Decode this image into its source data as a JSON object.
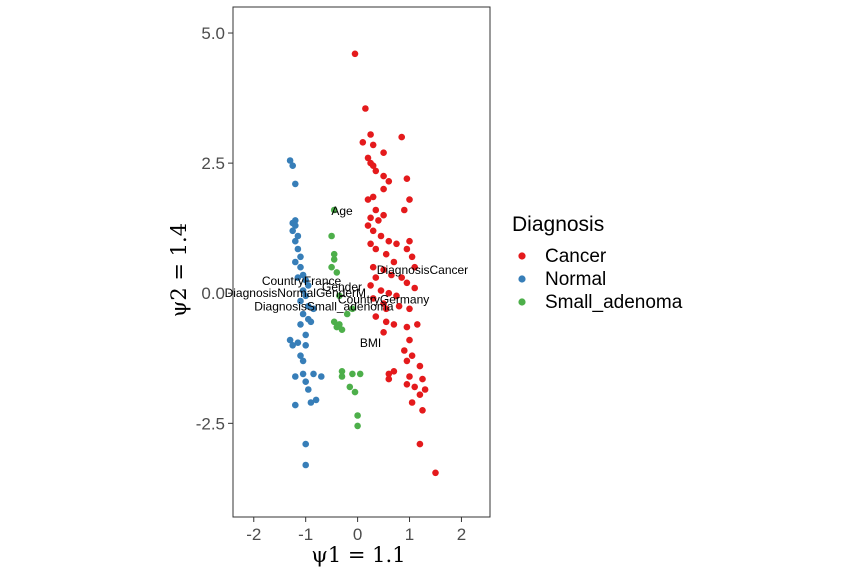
{
  "chart_data": {
    "type": "scatter",
    "xlabel": "ψ1 = 1.1",
    "ylabel": "ψ2 = 1.4",
    "xlim": [
      -2.4,
      2.55
    ],
    "ylim": [
      -4.3,
      5.5
    ],
    "x_ticks": [
      -2,
      -1,
      0,
      1,
      2
    ],
    "x_tick_labels": [
      "-2",
      "-1",
      "0",
      "1",
      "2"
    ],
    "y_ticks": [
      -2.5,
      0,
      2.5,
      5
    ],
    "y_tick_labels": [
      "-2.5",
      "0.0",
      "2.5",
      "5.0"
    ],
    "grid": false,
    "legend": {
      "title": "Diagnosis",
      "position": "right"
    },
    "series": [
      {
        "name": "Cancer",
        "color": "#E41A1C",
        "points": [
          [
            -0.05,
            4.6
          ],
          [
            0.15,
            3.55
          ],
          [
            0.25,
            3.05
          ],
          [
            0.85,
            3.0
          ],
          [
            0.1,
            2.9
          ],
          [
            0.3,
            2.85
          ],
          [
            0.5,
            2.7
          ],
          [
            0.2,
            2.6
          ],
          [
            0.25,
            2.5
          ],
          [
            0.3,
            2.45
          ],
          [
            0.35,
            2.35
          ],
          [
            0.5,
            2.25
          ],
          [
            0.6,
            2.15
          ],
          [
            0.95,
            2.2
          ],
          [
            0.5,
            2.0
          ],
          [
            0.3,
            1.85
          ],
          [
            0.2,
            1.8
          ],
          [
            0.35,
            1.6
          ],
          [
            1.0,
            1.8
          ],
          [
            0.9,
            1.6
          ],
          [
            0.5,
            1.5
          ],
          [
            0.25,
            1.45
          ],
          [
            0.2,
            1.3
          ],
          [
            0.4,
            1.4
          ],
          [
            0.3,
            1.2
          ],
          [
            0.45,
            1.1
          ],
          [
            0.6,
            1.0
          ],
          [
            0.75,
            0.95
          ],
          [
            0.25,
            0.95
          ],
          [
            0.35,
            0.85
          ],
          [
            0.55,
            0.75
          ],
          [
            0.7,
            0.6
          ],
          [
            1.0,
            1.0
          ],
          [
            0.95,
            0.85
          ],
          [
            1.05,
            0.7
          ],
          [
            1.1,
            0.5
          ],
          [
            0.3,
            0.5
          ],
          [
            0.5,
            0.45
          ],
          [
            0.35,
            0.3
          ],
          [
            0.65,
            0.35
          ],
          [
            0.85,
            0.3
          ],
          [
            0.95,
            0.2
          ],
          [
            1.1,
            0.1
          ],
          [
            0.25,
            0.15
          ],
          [
            0.45,
            0.05
          ],
          [
            0.6,
            0.0
          ],
          [
            0.75,
            -0.05
          ],
          [
            0.3,
            -0.1
          ],
          [
            0.5,
            -0.2
          ],
          [
            0.8,
            -0.25
          ],
          [
            1.0,
            -0.3
          ],
          [
            0.35,
            -0.45
          ],
          [
            0.55,
            -0.55
          ],
          [
            0.7,
            -0.6
          ],
          [
            0.95,
            -0.65
          ],
          [
            1.15,
            -0.6
          ],
          [
            0.5,
            -0.75
          ],
          [
            1.0,
            -0.9
          ],
          [
            0.9,
            -1.1
          ],
          [
            1.05,
            -1.2
          ],
          [
            0.95,
            -1.3
          ],
          [
            1.2,
            -1.4
          ],
          [
            0.6,
            -1.55
          ],
          [
            0.7,
            -1.5
          ],
          [
            0.6,
            -1.65
          ],
          [
            1.0,
            -1.6
          ],
          [
            1.25,
            -1.65
          ],
          [
            1.1,
            -1.8
          ],
          [
            0.95,
            -1.75
          ],
          [
            1.3,
            -1.85
          ],
          [
            1.2,
            -1.95
          ],
          [
            1.05,
            -2.1
          ],
          [
            1.25,
            -2.25
          ],
          [
            1.2,
            -2.9
          ],
          [
            1.5,
            -3.45
          ],
          [
            0.55,
            -0.3
          ]
        ]
      },
      {
        "name": "Normal",
        "color": "#377EB8",
        "points": [
          [
            -1.3,
            2.55
          ],
          [
            -1.25,
            2.45
          ],
          [
            -1.2,
            2.1
          ],
          [
            -1.2,
            1.4
          ],
          [
            -1.25,
            1.35
          ],
          [
            -1.2,
            1.3
          ],
          [
            -1.25,
            1.2
          ],
          [
            -1.15,
            1.1
          ],
          [
            -1.2,
            1.0
          ],
          [
            -1.15,
            0.85
          ],
          [
            -1.1,
            0.7
          ],
          [
            -1.2,
            0.6
          ],
          [
            -1.1,
            0.5
          ],
          [
            -1.05,
            0.35
          ],
          [
            -1.15,
            0.3
          ],
          [
            -1.0,
            0.25
          ],
          [
            -0.95,
            0.15
          ],
          [
            -1.05,
            0.05
          ],
          [
            -1.0,
            -0.05
          ],
          [
            -1.1,
            -0.15
          ],
          [
            -0.95,
            -0.25
          ],
          [
            -0.85,
            -0.3
          ],
          [
            -1.05,
            -0.4
          ],
          [
            -0.95,
            -0.5
          ],
          [
            -1.1,
            -0.6
          ],
          [
            -0.9,
            -0.55
          ],
          [
            -1.0,
            -0.8
          ],
          [
            -1.15,
            -0.95
          ],
          [
            -1.3,
            -0.9
          ],
          [
            -1.25,
            -1.0
          ],
          [
            -1.0,
            -1.0
          ],
          [
            -1.1,
            -1.2
          ],
          [
            -1.05,
            -1.3
          ],
          [
            -1.2,
            -1.6
          ],
          [
            -1.05,
            -1.55
          ],
          [
            -0.85,
            -1.55
          ],
          [
            -0.7,
            -1.6
          ],
          [
            -1.0,
            -1.7
          ],
          [
            -0.95,
            -1.85
          ],
          [
            -0.9,
            -2.1
          ],
          [
            -0.8,
            -2.05
          ],
          [
            -1.2,
            -2.15
          ],
          [
            -1.0,
            -2.9
          ],
          [
            -1.0,
            -3.3
          ]
        ]
      },
      {
        "name": "Small_adenoma",
        "color": "#4DAF4A",
        "points": [
          [
            -0.45,
            1.6
          ],
          [
            -0.5,
            1.1
          ],
          [
            -0.45,
            0.75
          ],
          [
            -0.45,
            0.65
          ],
          [
            -0.5,
            0.5
          ],
          [
            -0.4,
            0.4
          ],
          [
            -0.35,
            -0.05
          ],
          [
            -0.45,
            -0.55
          ],
          [
            -0.4,
            -0.65
          ],
          [
            -0.35,
            -0.6
          ],
          [
            -0.3,
            -0.7
          ],
          [
            -0.2,
            -0.4
          ],
          [
            -0.1,
            -0.3
          ],
          [
            -0.3,
            -1.5
          ],
          [
            -0.1,
            -1.55
          ],
          [
            0.05,
            -1.55
          ],
          [
            -0.15,
            -1.8
          ],
          [
            -0.05,
            -1.9
          ],
          [
            0.0,
            -2.35
          ],
          [
            0.0,
            -2.55
          ],
          [
            -0.3,
            -1.6
          ]
        ]
      }
    ],
    "annotations": [
      {
        "text": "Age",
        "x": -0.3,
        "y": 1.5
      },
      {
        "text": "DiagnosisCancer",
        "x": 1.25,
        "y": 0.37
      },
      {
        "text": "CountryFrance",
        "x": -1.08,
        "y": 0.16
      },
      {
        "text": "Gender",
        "x": -0.3,
        "y": 0.04
      },
      {
        "text": "DiagnosisNormalGenderM",
        "x": -1.2,
        "y": -0.07
      },
      {
        "text": "CountryGermany",
        "x": 0.5,
        "y": -0.2
      },
      {
        "text": "DiagnosisSmall_adenoma",
        "x": -0.65,
        "y": -0.33
      },
      {
        "text": "BMI",
        "x": 0.25,
        "y": -1.03
      }
    ]
  }
}
